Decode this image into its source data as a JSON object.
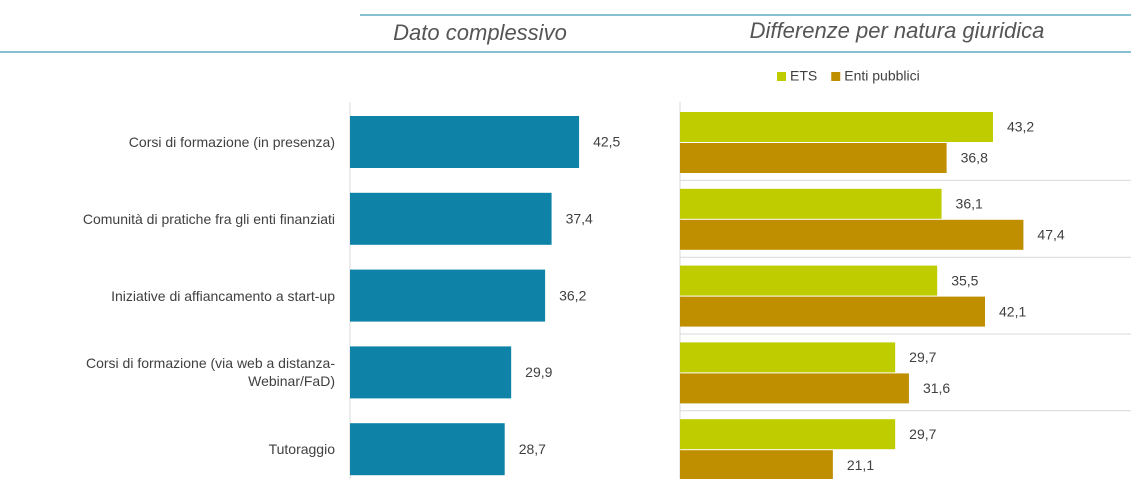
{
  "chart_data": [
    {
      "type": "barh",
      "title": "Dato complessivo",
      "categories": [
        "Corsi di formazione (in presenza)",
        "Comunità di pratiche fra gli enti finanziati",
        "Iniziative di affiancamento a start-up",
        "Corsi di formazione (via web a distanza-Webinar/FaD)",
        "Tutoraggio"
      ],
      "values": [
        42.5,
        37.4,
        36.2,
        29.9,
        28.7
      ],
      "value_labels": [
        "42,5",
        "37,4",
        "36,2",
        "29,9",
        "28,7"
      ],
      "color": "#0e83a7"
    },
    {
      "type": "barh",
      "title": "Differenze per natura giuridica",
      "legend": "top",
      "series": [
        {
          "name": "ETS",
          "color": "#bfcc00",
          "values": [
            43.2,
            36.1,
            35.5,
            29.7,
            29.7
          ],
          "value_labels": [
            "43,2",
            "36,1",
            "35,5",
            "29,7",
            "29,7"
          ]
        },
        {
          "name": "Enti pubblici",
          "color": "#bf8f00",
          "values": [
            36.8,
            47.4,
            42.1,
            31.6,
            21.1
          ],
          "value_labels": [
            "36,8",
            "47,4",
            "42,1",
            "31,6",
            "21,1"
          ]
        }
      ]
    }
  ]
}
